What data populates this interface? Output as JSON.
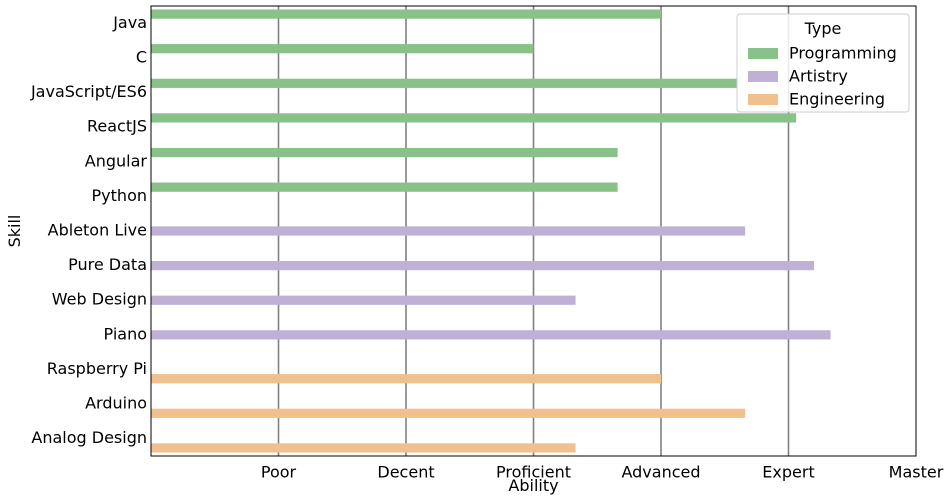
{
  "chart_data": {
    "type": "bar",
    "orientation": "horizontal",
    "xlabel": "Ability",
    "ylabel": "Skill",
    "xlim": [
      0,
      6
    ],
    "x_ticks": [
      {
        "value": 1,
        "label": "Poor"
      },
      {
        "value": 2,
        "label": "Decent"
      },
      {
        "value": 3,
        "label": "Proficient"
      },
      {
        "value": 4,
        "label": "Advanced"
      },
      {
        "value": 5,
        "label": "Expert"
      },
      {
        "value": 6,
        "label": "Master"
      }
    ],
    "grid": "vertical",
    "categories": [
      "Java",
      "C",
      "JavaScript/ES6",
      "ReactJS",
      "Angular",
      "Python",
      "Ableton Live",
      "Pure Data",
      "Web Design",
      "Piano",
      "Raspberry Pi",
      "Arduino",
      "Analog Design"
    ],
    "series": [
      {
        "name": "Programming",
        "color": "#88c288",
        "values": [
          4.0,
          3.0,
          4.6,
          5.06,
          3.66,
          3.66,
          null,
          null,
          null,
          null,
          null,
          null,
          null
        ]
      },
      {
        "name": "Artistry",
        "color": "#bfb1d5",
        "values": [
          null,
          null,
          null,
          null,
          null,
          null,
          4.66,
          5.2,
          3.33,
          5.33,
          null,
          null,
          null
        ]
      },
      {
        "name": "Engineering",
        "color": "#f0c08f",
        "values": [
          null,
          null,
          null,
          null,
          null,
          null,
          null,
          null,
          null,
          null,
          4.0,
          4.66,
          3.33
        ]
      }
    ],
    "legend": {
      "title": "Type",
      "placement": "top-right"
    }
  }
}
